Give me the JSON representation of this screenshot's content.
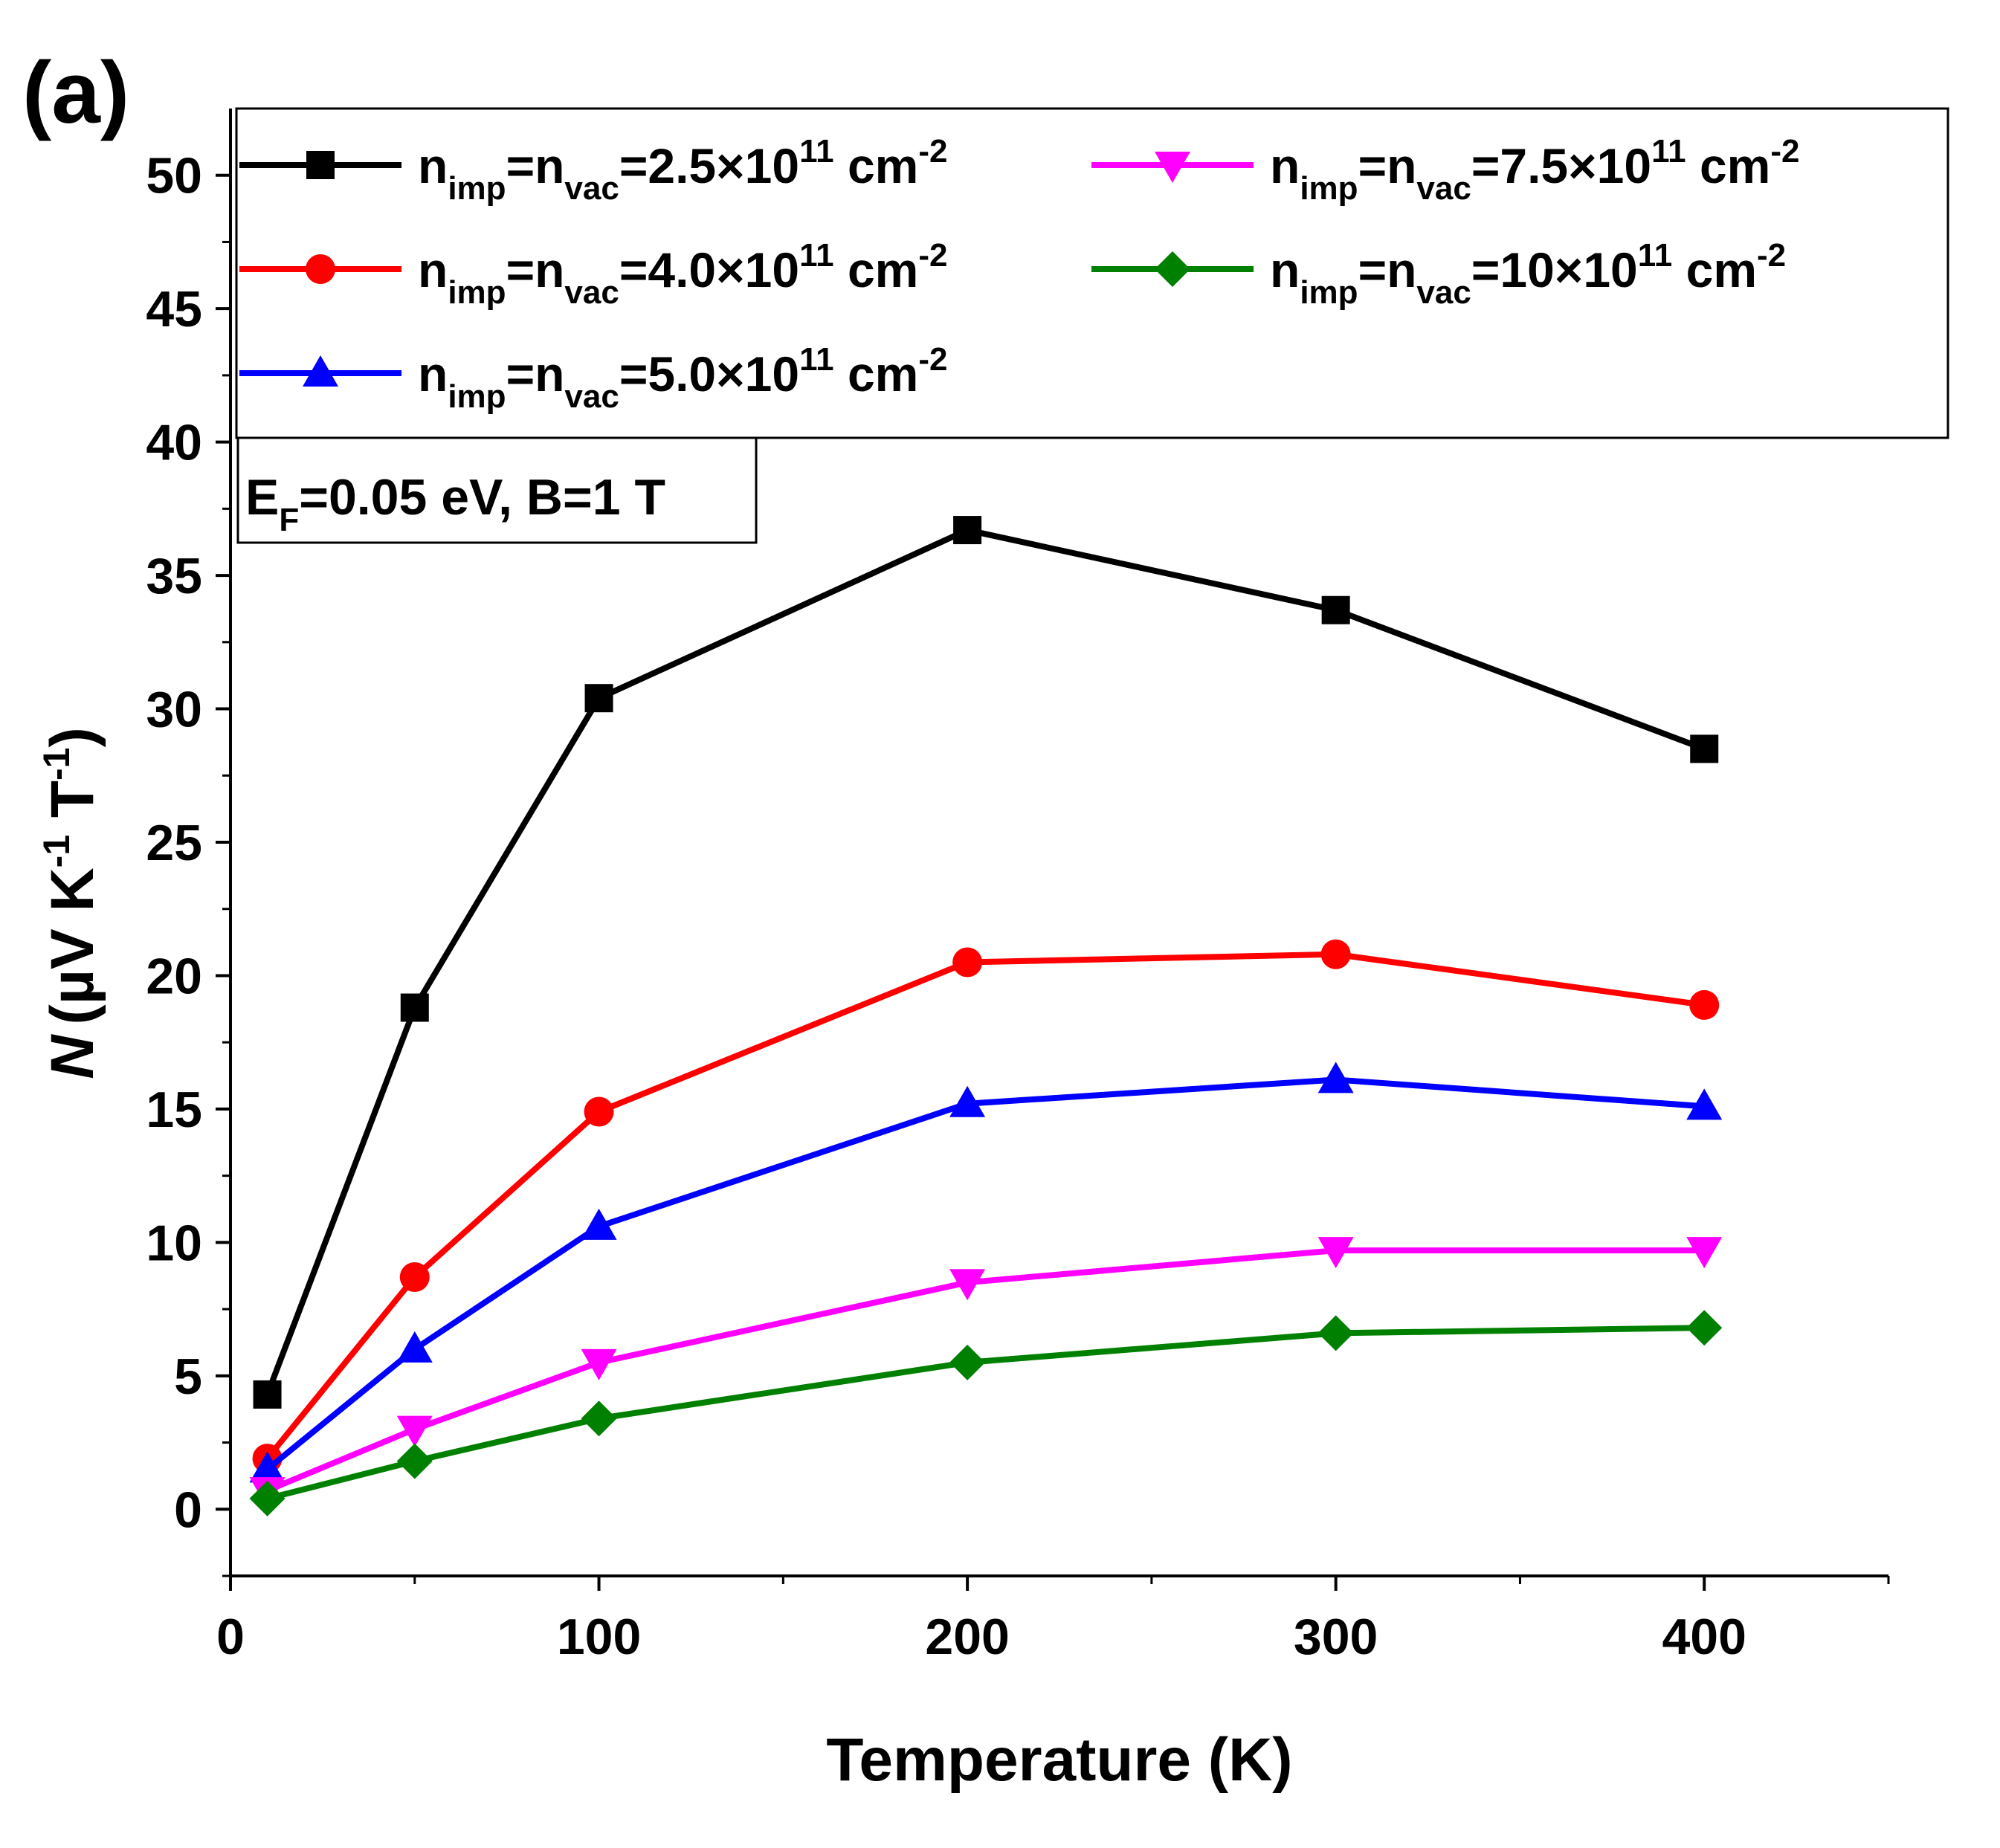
{
  "panel_label": "(a)",
  "chart_data": {
    "type": "line",
    "title": "",
    "xlabel": "Temperature (K)",
    "ylabel": {
      "symbol": "N",
      "unit_prefix": "(µV K",
      "exp1": "-1",
      "unit_mid": " T",
      "exp2": "-1",
      "unit_suffix": ")"
    },
    "xlim": [
      0,
      450
    ],
    "ylim": [
      -2.5,
      52.5
    ],
    "xticks": [
      0,
      100,
      200,
      300,
      400
    ],
    "yticks": [
      0,
      5,
      10,
      15,
      20,
      25,
      30,
      35,
      40,
      45,
      50
    ],
    "xminor": [
      50,
      150,
      250,
      350,
      450
    ],
    "yminor": [
      -2.5,
      2.5,
      7.5,
      12.5,
      17.5,
      22.5,
      27.5,
      32.5,
      37.5,
      42.5,
      47.5
    ],
    "grid": false,
    "legend_position": "top",
    "x": [
      10,
      50,
      100,
      200,
      300,
      400
    ],
    "series": [
      {
        "name": "2.5",
        "color": "#000000",
        "marker": "square",
        "label": {
          "n": "n",
          "sub1": "imp",
          "eq": "=n",
          "sub2": "vac",
          "val": "=2.5×10",
          "exp": "11",
          "unit": " cm",
          "unit_exp": "-2"
        },
        "values": [
          4.3,
          18.8,
          30.4,
          36.7,
          33.7,
          28.5
        ]
      },
      {
        "name": "4.0",
        "color": "#ff0000",
        "marker": "circle",
        "label": {
          "n": "n",
          "sub1": "imp",
          "eq": "=n",
          "sub2": "vac",
          "val": "=4.0×10",
          "exp": "11",
          "unit": " cm",
          "unit_exp": "-2"
        },
        "values": [
          1.9,
          8.7,
          14.9,
          20.5,
          20.8,
          18.9
        ]
      },
      {
        "name": "5.0",
        "color": "#0000ff",
        "marker": "triangle-up",
        "label": {
          "n": "n",
          "sub1": "imp",
          "eq": "=n",
          "sub2": "vac",
          "val": "=5.0×10",
          "exp": "11",
          "unit": " cm",
          "unit_exp": "-2"
        },
        "values": [
          1.5,
          6.0,
          10.6,
          15.2,
          16.1,
          15.1
        ]
      },
      {
        "name": "7.5",
        "color": "#ff00ff",
        "marker": "triangle-down",
        "label": {
          "n": "n",
          "sub1": "imp",
          "eq": "=n",
          "sub2": "vac",
          "val": "=7.5×10",
          "exp": "11",
          "unit": " cm",
          "unit_exp": "-2"
        },
        "values": [
          0.7,
          3.0,
          5.5,
          8.5,
          9.7,
          9.7
        ]
      },
      {
        "name": "10",
        "color": "#008000",
        "marker": "diamond",
        "label": {
          "n": "n",
          "sub1": "imp",
          "eq": "=n",
          "sub2": "vac",
          "val": "=10×10",
          "exp": "11",
          "unit": " cm",
          "unit_exp": "-2"
        },
        "values": [
          0.4,
          1.8,
          3.4,
          5.5,
          6.6,
          6.8
        ]
      }
    ],
    "annotation": {
      "e": "E",
      "sub": "F",
      "text": "=0.05 eV, B=1 T"
    }
  }
}
